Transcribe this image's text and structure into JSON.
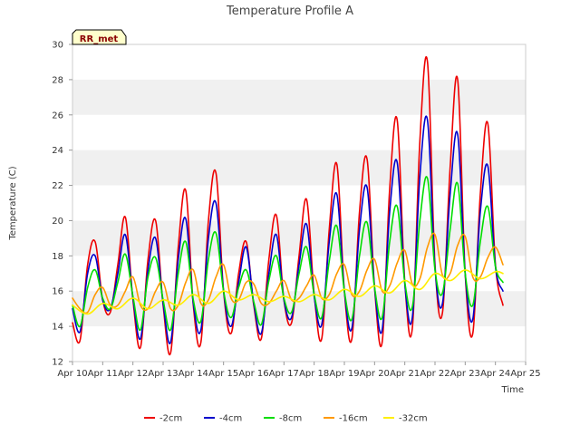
{
  "chart_data": {
    "type": "line",
    "title": "Temperature Profile A",
    "xlabel": "Time",
    "ylabel": "Temperature (C)",
    "x_ticks": [
      "Apr 10",
      "Apr 11",
      "Apr 12",
      "Apr 13",
      "Apr 14",
      "Apr 15",
      "Apr 16",
      "Apr 17",
      "Apr 18",
      "Apr 19",
      "Apr 20",
      "Apr 21",
      "Apr 22",
      "Apr 23",
      "Apr 24",
      "Apr 25"
    ],
    "xlim": [
      0,
      15
    ],
    "ylim": [
      12,
      30
    ],
    "y_ticks": [
      12,
      14,
      16,
      18,
      20,
      22,
      24,
      26,
      28,
      30
    ],
    "grid": "horizontal bands",
    "band_color": "#f0f0f0",
    "site_badge": "RR_met",
    "badge_color": "#ffffcc",
    "legend_position": "bottom",
    "series": [
      {
        "name": "-2cm",
        "color": "#ee0000",
        "x": [
          0.0,
          0.25,
          0.5,
          0.75,
          1.0,
          1.25,
          1.5,
          1.75,
          2.0,
          2.25,
          2.5,
          2.75,
          3.0,
          3.25,
          3.5,
          3.75,
          4.0,
          4.25,
          4.5,
          4.75,
          5.0,
          5.25,
          5.5,
          5.75,
          6.0,
          6.25,
          6.5,
          6.75,
          7.0,
          7.25,
          7.5,
          7.75,
          8.0,
          8.25,
          8.5,
          8.75,
          9.0,
          9.25,
          9.5,
          9.75,
          10.0,
          10.25,
          10.5,
          10.75,
          11.0,
          11.25,
          11.5,
          11.75,
          12.0,
          12.25,
          12.5,
          12.75,
          13.0,
          13.25,
          13.5,
          13.75,
          14.0,
          14.25
        ],
        "values": [
          14.2,
          13.2,
          17.5,
          18.8,
          15.5,
          14.8,
          17.5,
          20.2,
          15.5,
          12.8,
          17.8,
          20.0,
          15.2,
          12.5,
          18.5,
          21.7,
          15.2,
          13.1,
          20.0,
          22.7,
          16.0,
          13.6,
          17.0,
          18.8,
          15.2,
          13.3,
          17.8,
          20.3,
          15.5,
          14.2,
          18.0,
          21.2,
          15.8,
          13.3,
          19.5,
          23.2,
          16.0,
          13.3,
          20.5,
          23.5,
          16.2,
          13.1,
          21.8,
          25.7,
          16.5,
          13.9,
          24.5,
          29.0,
          17.5,
          14.8,
          23.0,
          28.0,
          17.0,
          13.6,
          21.5,
          25.5,
          17.5,
          15.2
        ]
      },
      {
        "name": "-4cm",
        "color": "#0000cc",
        "x": [
          0.0,
          0.25,
          0.5,
          0.75,
          1.0,
          1.25,
          1.5,
          1.75,
          2.0,
          2.25,
          2.5,
          2.75,
          3.0,
          3.25,
          3.5,
          3.75,
          4.0,
          4.25,
          4.5,
          4.75,
          5.0,
          5.25,
          5.5,
          5.75,
          6.0,
          6.25,
          6.5,
          6.75,
          7.0,
          7.25,
          7.5,
          7.75,
          8.0,
          8.25,
          8.5,
          8.75,
          9.0,
          9.25,
          9.5,
          9.75,
          10.0,
          10.25,
          10.5,
          10.75,
          11.0,
          11.25,
          11.5,
          11.75,
          12.0,
          12.25,
          12.5,
          12.75,
          13.0,
          13.25,
          13.5,
          13.75,
          14.0,
          14.25
        ],
        "values": [
          15.0,
          13.7,
          17.0,
          18.0,
          15.5,
          15.0,
          17.0,
          19.2,
          15.6,
          13.3,
          17.2,
          19.0,
          15.3,
          13.1,
          17.8,
          20.1,
          15.3,
          13.8,
          19.0,
          21.0,
          16.0,
          14.0,
          16.5,
          18.5,
          15.3,
          13.6,
          17.0,
          19.2,
          15.5,
          14.5,
          17.5,
          19.8,
          15.7,
          14.1,
          18.8,
          21.5,
          16.0,
          13.9,
          19.5,
          21.9,
          16.2,
          13.8,
          20.5,
          23.3,
          16.4,
          14.5,
          22.5,
          25.7,
          17.3,
          15.3,
          21.5,
          24.9,
          17.0,
          14.4,
          20.5,
          23.1,
          17.4,
          16.0
        ]
      },
      {
        "name": "-8cm",
        "color": "#00dd00",
        "x": [
          0.0,
          0.25,
          0.5,
          0.75,
          1.0,
          1.25,
          1.5,
          1.75,
          2.0,
          2.25,
          2.5,
          2.75,
          3.0,
          3.25,
          3.5,
          3.75,
          4.0,
          4.25,
          4.5,
          4.75,
          5.0,
          5.25,
          5.5,
          5.75,
          6.0,
          6.25,
          6.5,
          6.75,
          7.0,
          7.25,
          7.5,
          7.75,
          8.0,
          8.25,
          8.5,
          8.75,
          9.0,
          9.25,
          9.5,
          9.75,
          10.0,
          10.25,
          10.5,
          10.75,
          11.0,
          11.25,
          11.5,
          11.75,
          12.0,
          12.25,
          12.5,
          12.75,
          13.0,
          13.25,
          13.5,
          13.75,
          14.0,
          14.25
        ],
        "values": [
          15.2,
          14.0,
          16.2,
          17.2,
          15.6,
          15.0,
          16.5,
          18.1,
          15.7,
          13.8,
          16.8,
          17.9,
          15.5,
          13.8,
          17.0,
          18.8,
          15.5,
          14.3,
          17.8,
          19.3,
          16.0,
          14.5,
          16.2,
          17.2,
          15.4,
          14.1,
          16.6,
          18.0,
          15.6,
          14.8,
          17.0,
          18.5,
          15.8,
          14.5,
          17.7,
          19.7,
          16.0,
          14.4,
          18.0,
          19.9,
          16.2,
          14.5,
          18.8,
          20.8,
          16.5,
          15.1,
          20.0,
          22.4,
          17.2,
          15.9,
          19.5,
          22.1,
          17.0,
          15.2,
          18.8,
          20.8,
          17.4,
          16.5
        ]
      },
      {
        "name": "-16cm",
        "color": "#ff9900",
        "x": [
          0.0,
          0.25,
          0.5,
          0.75,
          1.0,
          1.25,
          1.5,
          1.75,
          2.0,
          2.25,
          2.5,
          2.75,
          3.0,
          3.25,
          3.5,
          3.75,
          4.0,
          4.25,
          4.5,
          4.75,
          5.0,
          5.25,
          5.5,
          5.75,
          6.0,
          6.25,
          6.5,
          6.75,
          7.0,
          7.25,
          7.5,
          7.75,
          8.0,
          8.25,
          8.5,
          8.75,
          9.0,
          9.25,
          9.5,
          9.75,
          10.0,
          10.25,
          10.5,
          10.75,
          11.0,
          11.25,
          11.5,
          11.75,
          12.0,
          12.25,
          12.5,
          12.75,
          13.0,
          13.25,
          13.5,
          13.75,
          14.0,
          14.25
        ],
        "values": [
          15.6,
          15.0,
          14.8,
          15.8,
          16.2,
          15.2,
          15.2,
          16.0,
          16.8,
          15.2,
          15.0,
          16.0,
          16.5,
          15.0,
          15.2,
          16.5,
          17.2,
          15.3,
          15.5,
          16.8,
          17.5,
          15.6,
          15.5,
          16.5,
          16.4,
          15.3,
          15.3,
          16.0,
          16.6,
          15.5,
          15.6,
          16.3,
          16.9,
          15.6,
          15.8,
          17.0,
          17.5,
          15.8,
          16.0,
          17.2,
          17.8,
          16.0,
          16.3,
          17.6,
          18.3,
          16.4,
          16.7,
          18.5,
          19.2,
          16.9,
          17.0,
          18.6,
          19.1,
          16.8,
          16.8,
          17.9,
          18.5,
          17.5
        ]
      },
      {
        "name": "-32cm",
        "color": "#ffee00",
        "x": [
          0.0,
          0.5,
          1.0,
          1.5,
          2.0,
          2.5,
          3.0,
          3.5,
          4.0,
          4.5,
          5.0,
          5.5,
          6.0,
          6.5,
          7.0,
          7.5,
          8.0,
          8.5,
          9.0,
          9.5,
          10.0,
          10.5,
          11.0,
          11.5,
          12.0,
          12.5,
          13.0,
          13.5,
          14.0,
          14.25
        ],
        "values": [
          15.2,
          14.7,
          15.3,
          15.0,
          15.6,
          15.0,
          15.5,
          15.2,
          15.8,
          15.3,
          16.0,
          15.5,
          15.8,
          15.4,
          15.7,
          15.4,
          15.8,
          15.5,
          16.1,
          15.7,
          16.3,
          15.9,
          16.6,
          16.1,
          17.0,
          16.6,
          17.2,
          16.7,
          17.1,
          17.0
        ]
      }
    ]
  }
}
